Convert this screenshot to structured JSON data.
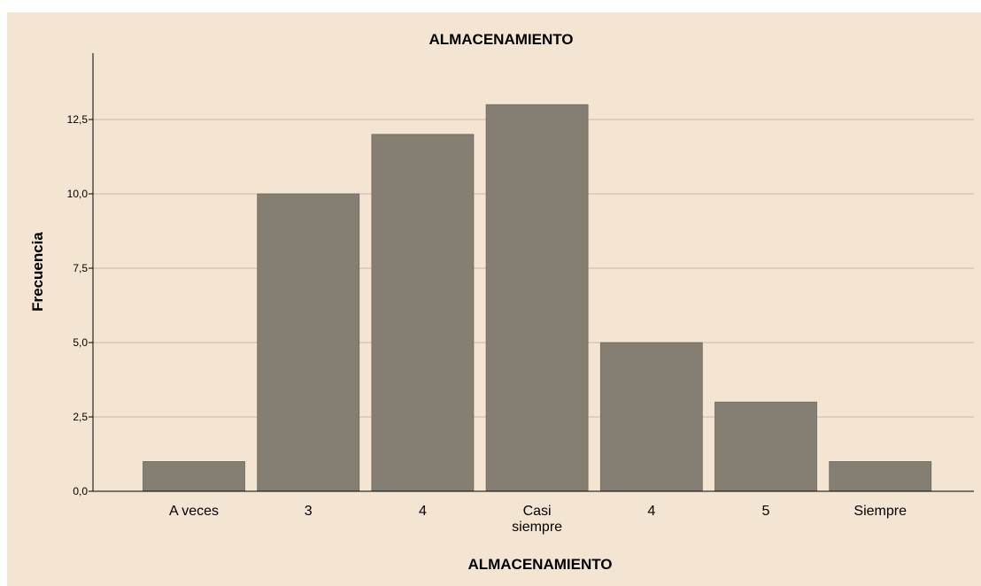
{
  "chart_data": {
    "type": "bar",
    "title": "ALMACENAMIENTO",
    "xlabel": "ALMACENAMIENTO",
    "ylabel": "Frecuencia",
    "categories": [
      "A veces",
      "3",
      "4",
      "Casi siempre",
      "4",
      "5",
      "Siempre"
    ],
    "category_lines": [
      [
        "A veces"
      ],
      [
        "3"
      ],
      [
        "4"
      ],
      [
        "Casi",
        "siempre"
      ],
      [
        "4"
      ],
      [
        "5"
      ],
      [
        "Siempre"
      ]
    ],
    "values": [
      1,
      10,
      12,
      13,
      5,
      3,
      1
    ],
    "yticks": [
      0,
      2.5,
      5,
      7.5,
      10,
      12.5
    ],
    "ytick_labels": [
      "0,0",
      "2,5",
      "5,0",
      "7,5",
      "10,0",
      "12,5"
    ],
    "ylim": [
      0,
      14.6
    ],
    "grid": true,
    "legend": "none",
    "colors": {
      "bar": "#857e72",
      "background": "#f4e4d2",
      "grid": "#c9b9a6"
    }
  }
}
